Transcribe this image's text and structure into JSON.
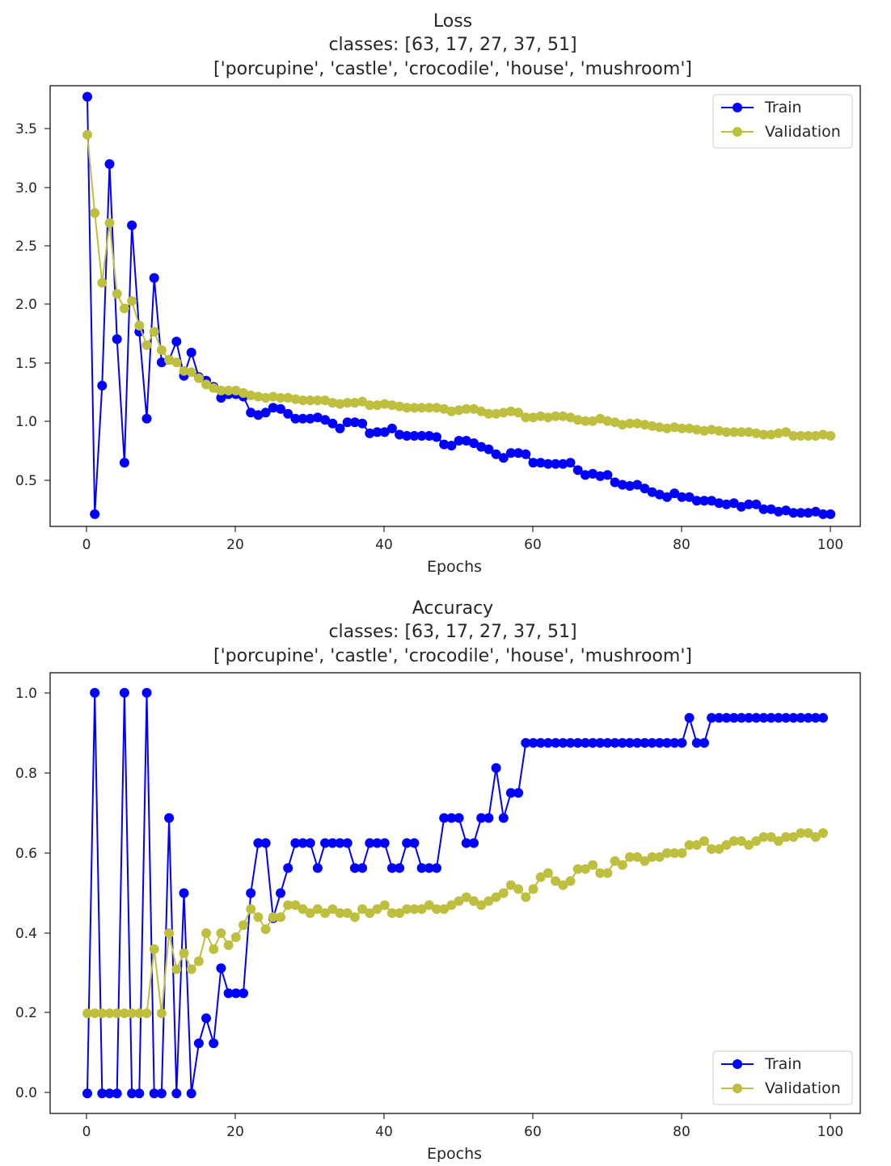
{
  "chart_data": [
    {
      "type": "line",
      "title": "Loss",
      "subtitle": "classes: [63, 17, 27, 37, 51]",
      "subtitle2": "['porcupine', 'castle', 'crocodile', 'house', 'mushroom']",
      "xlabel": "Epochs",
      "ylabel": "",
      "xlim": [
        -5,
        104
      ],
      "ylim": [
        0.19,
        3.79
      ],
      "xticks": [
        "0",
        "20",
        "40",
        "60",
        "80",
        "100"
      ],
      "yticks": [
        "0.5",
        "1.0",
        "1.5",
        "2.0",
        "2.5",
        "3.0",
        "3.5"
      ],
      "grid": false,
      "legend_position": "upper right",
      "series": [
        {
          "name": "Train",
          "color": "#0000ff",
          "values": [
            3.7,
            0.29,
            1.34,
            3.15,
            1.72,
            0.71,
            2.65,
            1.78,
            1.07,
            2.22,
            1.53,
            1.55,
            1.7,
            1.42,
            1.61,
            1.41,
            1.38,
            1.33,
            1.24,
            1.27,
            1.27,
            1.25,
            1.12,
            1.1,
            1.12,
            1.16,
            1.15,
            1.11,
            1.07,
            1.07,
            1.07,
            1.08,
            1.06,
            1.03,
            0.99,
            1.04,
            1.04,
            1.03,
            0.95,
            0.96,
            0.96,
            0.99,
            0.94,
            0.93,
            0.93,
            0.93,
            0.93,
            0.92,
            0.86,
            0.85,
            0.89,
            0.89,
            0.87,
            0.84,
            0.82,
            0.78,
            0.75,
            0.79,
            0.79,
            0.78,
            0.71,
            0.71,
            0.7,
            0.7,
            0.7,
            0.71,
            0.65,
            0.61,
            0.62,
            0.6,
            0.61,
            0.55,
            0.53,
            0.52,
            0.53,
            0.5,
            0.47,
            0.45,
            0.43,
            0.46,
            0.43,
            0.43,
            0.4,
            0.4,
            0.4,
            0.38,
            0.37,
            0.38,
            0.35,
            0.37,
            0.37,
            0.33,
            0.33,
            0.31,
            0.32,
            0.3,
            0.3,
            0.3,
            0.31,
            0.29,
            0.29
          ]
        },
        {
          "name": "Validation",
          "color": "#bfbf3f",
          "values": [
            3.39,
            2.75,
            2.18,
            2.67,
            2.09,
            1.97,
            2.03,
            1.83,
            1.67,
            1.78,
            1.63,
            1.55,
            1.53,
            1.46,
            1.45,
            1.4,
            1.35,
            1.32,
            1.3,
            1.3,
            1.3,
            1.28,
            1.26,
            1.25,
            1.24,
            1.25,
            1.24,
            1.24,
            1.23,
            1.22,
            1.22,
            1.22,
            1.22,
            1.2,
            1.19,
            1.2,
            1.2,
            1.21,
            1.18,
            1.18,
            1.19,
            1.18,
            1.17,
            1.16,
            1.16,
            1.16,
            1.16,
            1.16,
            1.15,
            1.13,
            1.14,
            1.15,
            1.15,
            1.13,
            1.11,
            1.11,
            1.12,
            1.13,
            1.12,
            1.08,
            1.08,
            1.09,
            1.08,
            1.09,
            1.09,
            1.08,
            1.06,
            1.05,
            1.05,
            1.07,
            1.05,
            1.04,
            1.02,
            1.03,
            1.03,
            1.02,
            1.01,
            1.0,
            0.99,
            1.0,
            0.99,
            0.99,
            0.98,
            0.97,
            0.98,
            0.97,
            0.96,
            0.96,
            0.96,
            0.96,
            0.95,
            0.94,
            0.94,
            0.95,
            0.96,
            0.93,
            0.93,
            0.93,
            0.93,
            0.94,
            0.93
          ]
        }
      ]
    },
    {
      "type": "line",
      "title": "Accuracy",
      "subtitle": "classes: [63, 17, 27, 37, 51]",
      "subtitle2": "['porcupine', 'castle', 'crocodile', 'house', 'mushroom']",
      "xlabel": "Epochs",
      "ylabel": "",
      "xlim": [
        -5,
        104
      ],
      "ylim": [
        -0.05,
        1.05
      ],
      "xticks": [
        "0",
        "20",
        "40",
        "60",
        "80",
        "100"
      ],
      "yticks": [
        "0.0",
        "0.2",
        "0.4",
        "0.6",
        "0.8",
        "1.0"
      ],
      "grid": false,
      "legend_position": "lower right",
      "series": [
        {
          "name": "Train",
          "color": "#0000ff",
          "values": [
            0.0,
            1.0,
            0.0,
            0.0,
            0.0,
            1.0,
            0.0,
            0.0,
            1.0,
            0.0,
            0.0,
            0.6875,
            0.0,
            0.5,
            0.0,
            0.125,
            0.1875,
            0.125,
            0.3125,
            0.25,
            0.25,
            0.25,
            0.5,
            0.625,
            0.625,
            0.4375,
            0.5,
            0.5625,
            0.625,
            0.625,
            0.625,
            0.5625,
            0.625,
            0.625,
            0.625,
            0.625,
            0.5625,
            0.5625,
            0.625,
            0.625,
            0.625,
            0.5625,
            0.5625,
            0.625,
            0.625,
            0.5625,
            0.5625,
            0.5625,
            0.6875,
            0.6875,
            0.6875,
            0.625,
            0.625,
            0.6875,
            0.6875,
            0.8125,
            0.6875,
            0.75,
            0.75,
            0.875,
            0.875,
            0.875,
            0.875,
            0.875,
            0.875,
            0.875,
            0.875,
            0.875,
            0.875,
            0.875,
            0.875,
            0.875,
            0.875,
            0.875,
            0.875,
            0.875,
            0.875,
            0.875,
            0.875,
            0.875,
            0.875,
            0.9375,
            0.875,
            0.875,
            0.9375,
            0.9375,
            0.9375,
            0.9375,
            0.9375,
            0.9375,
            0.9375,
            0.9375,
            0.9375,
            0.9375,
            0.9375,
            0.9375,
            0.9375,
            0.9375,
            0.9375,
            0.9375
          ]
        },
        {
          "name": "Validation",
          "color": "#bfbf3f",
          "values": [
            0.2,
            0.2,
            0.2,
            0.2,
            0.2,
            0.2,
            0.2,
            0.2,
            0.2,
            0.36,
            0.2,
            0.4,
            0.31,
            0.35,
            0.31,
            0.33,
            0.4,
            0.36,
            0.4,
            0.37,
            0.39,
            0.42,
            0.46,
            0.44,
            0.41,
            0.44,
            0.44,
            0.47,
            0.47,
            0.46,
            0.45,
            0.46,
            0.45,
            0.46,
            0.45,
            0.45,
            0.44,
            0.46,
            0.45,
            0.46,
            0.47,
            0.45,
            0.45,
            0.46,
            0.46,
            0.46,
            0.47,
            0.46,
            0.46,
            0.47,
            0.48,
            0.49,
            0.48,
            0.47,
            0.48,
            0.49,
            0.5,
            0.52,
            0.51,
            0.49,
            0.51,
            0.54,
            0.55,
            0.53,
            0.52,
            0.53,
            0.56,
            0.56,
            0.57,
            0.55,
            0.55,
            0.58,
            0.57,
            0.59,
            0.59,
            0.58,
            0.59,
            0.59,
            0.6,
            0.6,
            0.6,
            0.62,
            0.62,
            0.63,
            0.61,
            0.61,
            0.62,
            0.63,
            0.63,
            0.62,
            0.63,
            0.64,
            0.64,
            0.63,
            0.64,
            0.64,
            0.65,
            0.65,
            0.64,
            0.65
          ]
        }
      ]
    }
  ]
}
